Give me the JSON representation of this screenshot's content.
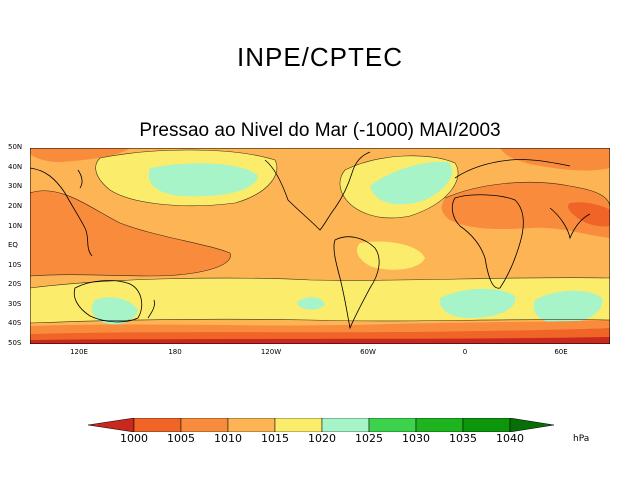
{
  "header": {
    "org_title": "INPE/CPTEC"
  },
  "map": {
    "title": "Pressao ao Nivel do Mar (-1000) MAI/2003",
    "lat_labels": [
      "50N",
      "40N",
      "30N",
      "20N",
      "10N",
      "EQ",
      "10S",
      "20S",
      "30S",
      "40S",
      "50S"
    ],
    "lon_labels": [
      "120E",
      "180",
      "120W",
      "60W",
      "0",
      "60E"
    ],
    "colors": {
      "below_1000": "#c8281e",
      "r1000_1005": "#f06428",
      "r1005_1010": "#f98c3c",
      "r1010_1015": "#fcb454",
      "r1015_1020": "#fcec6c",
      "r1020_1025": "#a6f4c8",
      "r1025_1030": "#3cd24c",
      "r1030_1035": "#1eb41e",
      "r1035_1040": "#0c960c",
      "above_1040": "#086e08"
    }
  },
  "colorbar": {
    "labels": [
      "1000",
      "1005",
      "1010",
      "1015",
      "1020",
      "1025",
      "1030",
      "1035",
      "1040"
    ],
    "unit": "hPa"
  }
}
